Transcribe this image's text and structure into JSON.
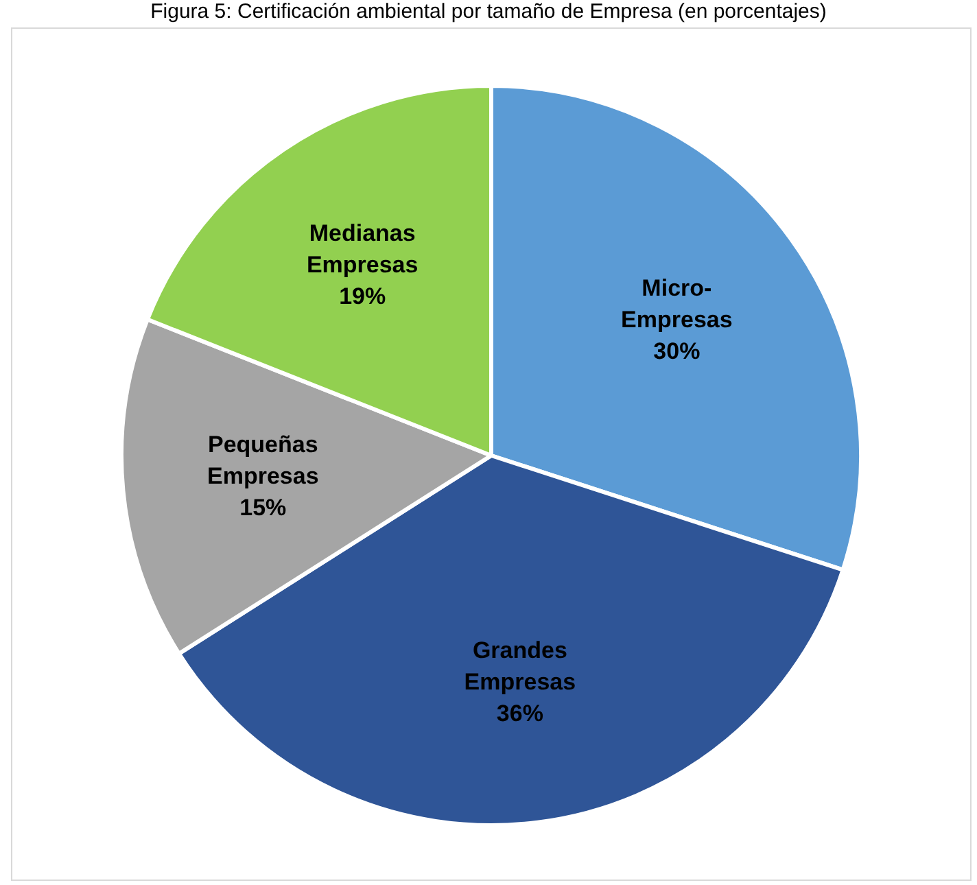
{
  "chart_data": {
    "type": "pie",
    "title": "Figura 5: Certificación ambiental por tamaño de Empresa (en porcentajes)",
    "categories": [
      "Micro-Empresas",
      "Grandes Empresas",
      "Pequeñas Empresas",
      "Medianas Empresas"
    ],
    "values": [
      30,
      36,
      15,
      19
    ],
    "colors": [
      "#5b9bd5",
      "#2f5597",
      "#a5a5a5",
      "#92d050"
    ],
    "value_labels": [
      "30%",
      "36%",
      "15%",
      "19%"
    ]
  }
}
